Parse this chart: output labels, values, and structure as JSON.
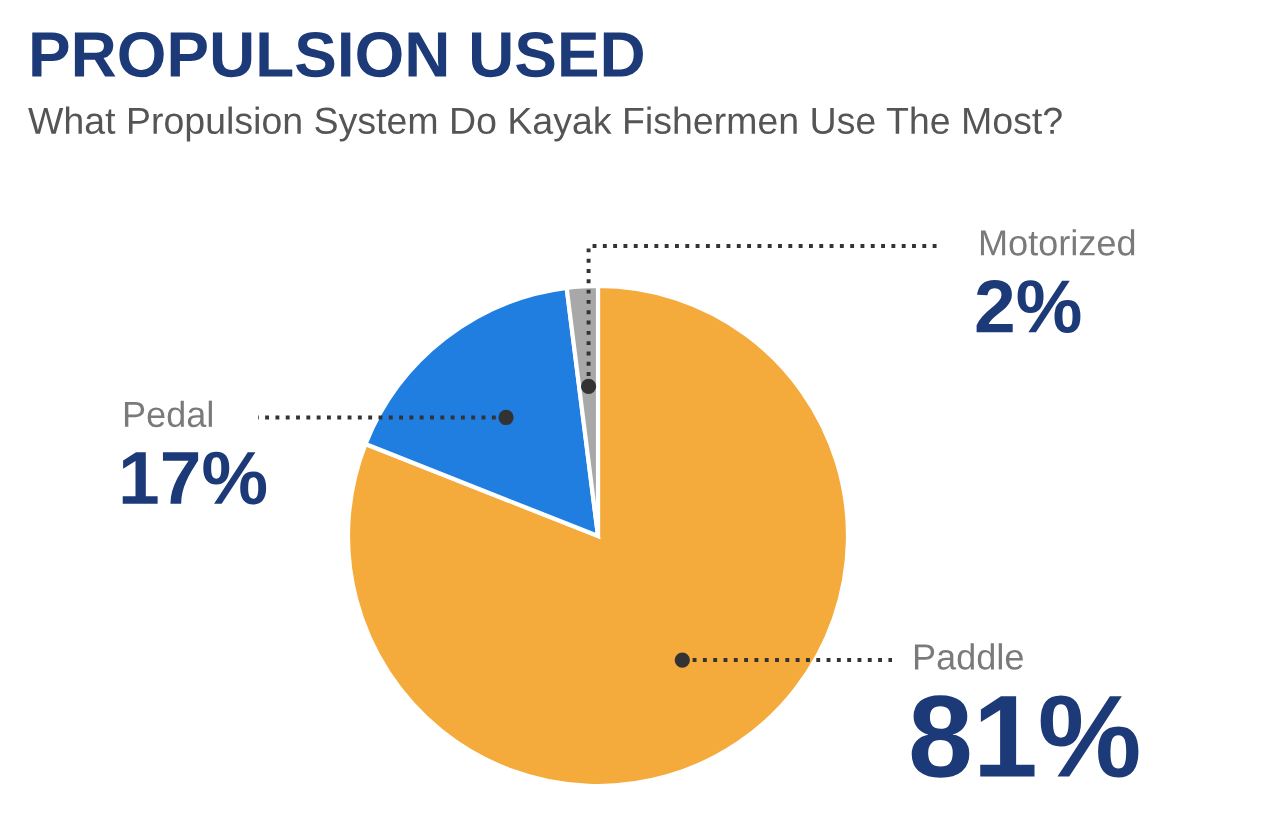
{
  "chart_data": {
    "type": "pie",
    "title": "PROPULSION USED",
    "subtitle": "What Propulsion System Do Kayak Fishermen Use The Most?",
    "categories": [
      "Paddle",
      "Pedal",
      "Motorized"
    ],
    "values": [
      81,
      17,
      2
    ],
    "colors": [
      "#f4ab3c",
      "#1f7ee0",
      "#a8a8a8"
    ],
    "value_labels": [
      "81%",
      "17%",
      "2%"
    ]
  }
}
